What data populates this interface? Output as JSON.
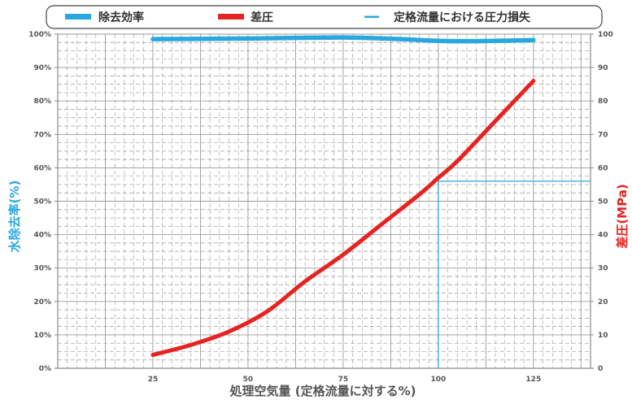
{
  "chart_data": {
    "type": "line",
    "title": "",
    "xlabel": "処理空気量 (定格流量に対する%)",
    "ylabel_left": "水除去率(%)",
    "ylabel_right": "差圧(MPa)",
    "xlim": [
      0,
      140
    ],
    "ylim_left": [
      0,
      100
    ],
    "ylim_right": [
      0,
      100
    ],
    "x_ticks": [
      "25",
      "50",
      "75",
      "100",
      "125"
    ],
    "y_ticks_left": [
      "0%",
      "10%",
      "20%",
      "30%",
      "40%",
      "50%",
      "60%",
      "70%",
      "80%",
      "90%",
      "100%"
    ],
    "y_ticks_right": [
      "0",
      "10",
      "20",
      "30",
      "40",
      "50",
      "60",
      "70",
      "80",
      "90",
      "100"
    ],
    "grid": true,
    "legend_position": "top",
    "legend": [
      {
        "label": "除去効率",
        "color": "#29a8e0",
        "style": "thick"
      },
      {
        "label": "差圧",
        "color": "#e52421",
        "style": "thick"
      },
      {
        "label": "定格流量における圧力損失",
        "color": "#29a8e0",
        "style": "thin"
      }
    ],
    "series": [
      {
        "name": "除去効率",
        "axis": "left",
        "color": "#29a8e0",
        "x": [
          25,
          50,
          75,
          90,
          100,
          110,
          125
        ],
        "y": [
          98.5,
          98.7,
          99.0,
          98.5,
          98.0,
          97.9,
          98.2
        ]
      },
      {
        "name": "差圧",
        "axis": "right",
        "color": "#e52421",
        "x": [
          25,
          35,
          45,
          55,
          65,
          75,
          85,
          95,
          100,
          105,
          115,
          125
        ],
        "y": [
          4,
          7,
          11,
          17,
          26,
          34,
          43,
          52,
          57,
          62,
          74,
          86
        ]
      }
    ],
    "reference": {
      "name": "定格流量における圧力損失",
      "x": 100,
      "y": 56,
      "color": "#29a8e0"
    }
  }
}
